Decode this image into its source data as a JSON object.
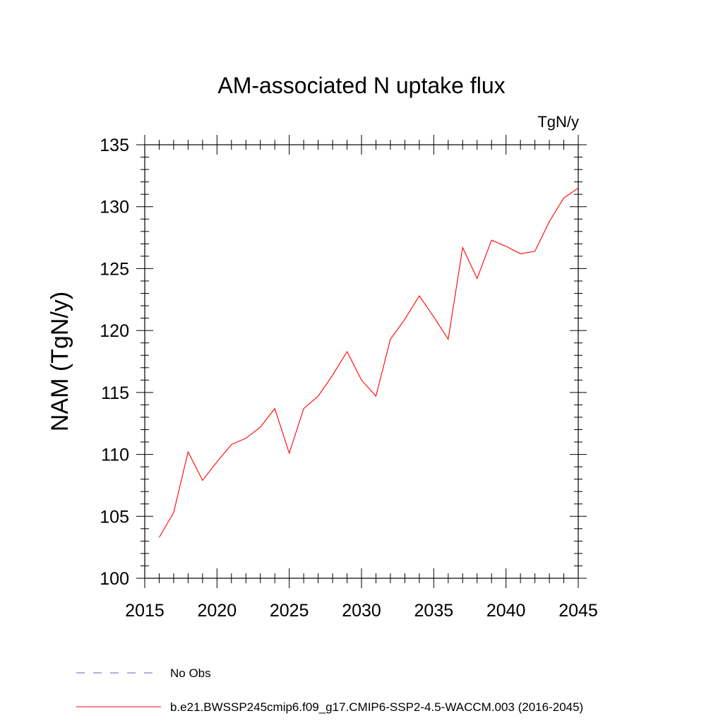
{
  "chart_data": {
    "type": "line",
    "title": "AM-associated N uptake flux",
    "units": "TgN/y",
    "xlabel": "",
    "ylabel": "NAM  (TgN/y)",
    "xlim": [
      2015,
      2045
    ],
    "ylim": [
      100,
      135
    ],
    "xticks": [
      "2015",
      "2020",
      "2025",
      "2030",
      "2035",
      "2040",
      "2045"
    ],
    "yticks": [
      "100",
      "105",
      "110",
      "115",
      "120",
      "125",
      "130",
      "135"
    ],
    "grid": false,
    "legend_position": "bottom",
    "series": [
      {
        "name": "b.e21.BWSSP245cmip6.f09_g17.CMIP6-SSP2-4.5-WACCM.003 (2016-2045)",
        "color": "#ff0000",
        "line_style": "solid",
        "x": [
          2016,
          2017,
          2018,
          2019,
          2020,
          2021,
          2022,
          2023,
          2024,
          2025,
          2026,
          2027,
          2028,
          2029,
          2030,
          2031,
          2032,
          2033,
          2034,
          2035,
          2036,
          2037,
          2038,
          2039,
          2040,
          2041,
          2042,
          2043,
          2044,
          2045
        ],
        "y": [
          103.3,
          105.3,
          110.2,
          107.9,
          109.4,
          110.8,
          111.3,
          112.2,
          113.7,
          110.1,
          113.7,
          114.7,
          116.4,
          118.3,
          116.0,
          114.7,
          119.3,
          120.9,
          122.8,
          121.1,
          119.3,
          126.7,
          124.2,
          127.3,
          126.8,
          126.2,
          126.4,
          128.8,
          130.7,
          131.5
        ]
      }
    ],
    "legend": [
      {
        "label": "No Obs",
        "color": "#6c5fa8",
        "line_style": "dashed"
      },
      {
        "label": "b.e21.BWSSP245cmip6.f09_g17.CMIP6-SSP2-4.5-WACCM.003 (2016-2045)",
        "color": "#ff0000",
        "line_style": "solid"
      }
    ]
  }
}
